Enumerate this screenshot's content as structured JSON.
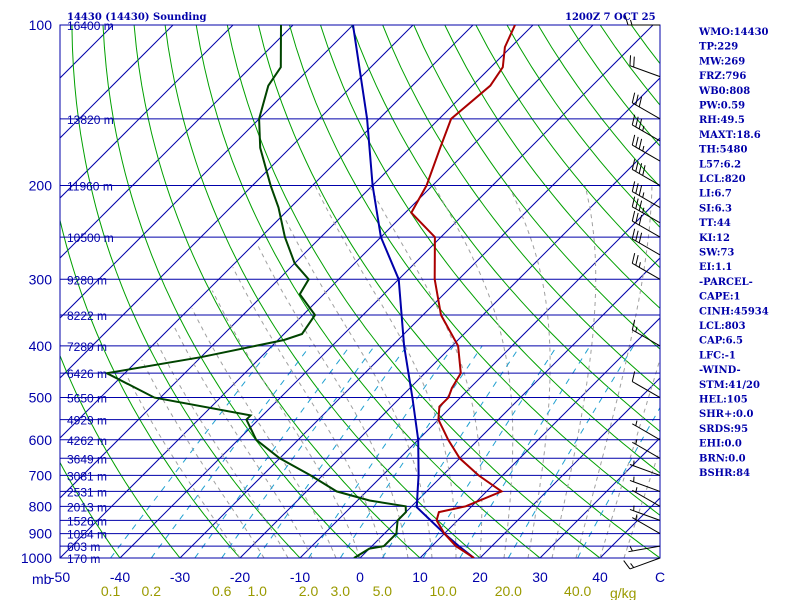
{
  "header": {
    "station": "14430 (14430) Sounding",
    "time": "1200Z  7 OCT 25"
  },
  "axis": {
    "pressure_label": "mb",
    "mixing_unit": "g/kg",
    "pressure_ticks": [
      100,
      200,
      300,
      400,
      500,
      600,
      700,
      800,
      900,
      1000
    ],
    "temp_ticks": [
      "-50",
      "-40",
      "-30",
      "-20",
      "-10",
      "0",
      "10",
      "20",
      "30",
      "40",
      "C"
    ],
    "temp_range": [
      -50,
      50
    ],
    "pressure_range": [
      1000,
      100
    ],
    "mixing_ticks": [
      "0.1",
      "0.2",
      "0.6",
      "1.0",
      "2.0",
      "3.0",
      "5.0",
      "10.0",
      "20.0",
      "40.0"
    ]
  },
  "heights": [
    {
      "p": 100,
      "label": "16400 m"
    },
    {
      "p": 150,
      "label": "13820 m"
    },
    {
      "p": 200,
      "label": "11960 m"
    },
    {
      "p": 250,
      "label": "10500 m"
    },
    {
      "p": 300,
      "label": "9280 m"
    },
    {
      "p": 350,
      "label": "8222 m"
    },
    {
      "p": 400,
      "label": "7280 m"
    },
    {
      "p": 450,
      "label": "6426 m"
    },
    {
      "p": 500,
      "label": "5650 m"
    },
    {
      "p": 550,
      "label": "4929 m"
    },
    {
      "p": 600,
      "label": "4262 m"
    },
    {
      "p": 650,
      "label": "3649 m"
    },
    {
      "p": 700,
      "label": "3081 m"
    },
    {
      "p": 750,
      "label": "2531 m"
    },
    {
      "p": 800,
      "label": "2013 m"
    },
    {
      "p": 850,
      "label": "1526 m"
    },
    {
      "p": 900,
      "label": "1054 m"
    },
    {
      "p": 950,
      "label": "603 m"
    },
    {
      "p": 1000,
      "label": "170 m"
    }
  ],
  "indices": [
    "WMO:14430",
    "TP:229",
    "MW:269",
    "FRZ:796",
    "WB0:808",
    "PW:0.59",
    "RH:49.5",
    "MAXT:18.6",
    "TH:5480",
    "L57:6.2",
    "LCL:820",
    "LI:6.7",
    "SI:6.3",
    "TT:44",
    "KI:12",
    "SW:73",
    "EI:1.1",
    "-PARCEL-",
    "CAPE:1",
    "CINH:45934",
    "LCL:803",
    "CAP:6.5",
    "LFC:-1",
    "-WIND-",
    "STM:41/20",
    "HEL:105",
    "SHR+:0.0",
    "SRDS:95",
    "EHI:0.0",
    "BRN:0.0",
    "BSHR:84"
  ],
  "colors": {
    "temperature": "#aa0000",
    "dewpoint": "#004400",
    "parcel": "#0000aa",
    "isobar": "#0000aa",
    "isotherm": "#0000aa",
    "dry_adiabat": "#00a000",
    "moist_adiabat": "#a0a0a0",
    "mixing_ratio": "#20a0d0"
  },
  "chart_data": {
    "type": "line",
    "title": "14430 (14430) Sounding",
    "xlabel": "C",
    "ylabel": "mb",
    "y_scale": "log",
    "skew": true,
    "series": [
      {
        "key": "temperature",
        "points": [
          [
            1000,
            19
          ],
          [
            950,
            14
          ],
          [
            900,
            10
          ],
          [
            850,
            6.5
          ],
          [
            820,
            5.5
          ],
          [
            800,
            9
          ],
          [
            750,
            12.5
          ],
          [
            700,
            6
          ],
          [
            650,
            0
          ],
          [
            600,
            -5
          ],
          [
            550,
            -10
          ],
          [
            520,
            -12
          ],
          [
            500,
            -12
          ],
          [
            480,
            -13
          ],
          [
            450,
            -14
          ],
          [
            400,
            -19
          ],
          [
            350,
            -27
          ],
          [
            300,
            -34
          ],
          [
            250,
            -41
          ],
          [
            225,
            -49
          ],
          [
            200,
            -51
          ],
          [
            170,
            -55
          ],
          [
            150,
            -58
          ],
          [
            130,
            -57
          ],
          [
            120,
            -58
          ],
          [
            110,
            -61
          ],
          [
            100,
            -63
          ]
        ]
      },
      {
        "key": "dewpoint",
        "points": [
          [
            1000,
            -1
          ],
          [
            960,
            0
          ],
          [
            950,
            2
          ],
          [
            900,
            2
          ],
          [
            850,
            0
          ],
          [
            820,
            0
          ],
          [
            800,
            -1
          ],
          [
            780,
            -8
          ],
          [
            750,
            -15
          ],
          [
            700,
            -22
          ],
          [
            650,
            -30
          ],
          [
            600,
            -37
          ],
          [
            550,
            -42
          ],
          [
            540,
            -42
          ],
          [
            500,
            -61
          ],
          [
            450,
            -73
          ],
          [
            420,
            -60
          ],
          [
            390,
            -49
          ],
          [
            380,
            -47
          ],
          [
            350,
            -48
          ],
          [
            320,
            -54
          ],
          [
            300,
            -55
          ],
          [
            280,
            -60
          ],
          [
            250,
            -66
          ],
          [
            220,
            -72
          ],
          [
            200,
            -77
          ],
          [
            170,
            -85
          ],
          [
            150,
            -90
          ],
          [
            130,
            -94
          ],
          [
            120,
            -95
          ],
          [
            100,
            -102
          ]
        ]
      },
      {
        "key": "parcel",
        "points": [
          [
            1000,
            19
          ],
          [
            950,
            14.5
          ],
          [
            900,
            10
          ],
          [
            850,
            5.5
          ],
          [
            803,
            1
          ],
          [
            750,
            -1.5
          ],
          [
            700,
            -4
          ],
          [
            600,
            -10
          ],
          [
            500,
            -18
          ],
          [
            400,
            -28
          ],
          [
            300,
            -40
          ],
          [
            250,
            -50
          ],
          [
            200,
            -60
          ],
          [
            150,
            -72
          ],
          [
            100,
            -90
          ]
        ]
      }
    ],
    "wind_barbs": [
      {
        "p": 1000,
        "dir": 250,
        "kt": 15
      },
      {
        "p": 950,
        "dir": 260,
        "kt": 5
      },
      {
        "p": 900,
        "dir": 300,
        "kt": 5
      },
      {
        "p": 850,
        "dir": 290,
        "kt": 5
      },
      {
        "p": 800,
        "dir": 300,
        "kt": 5
      },
      {
        "p": 750,
        "dir": 290,
        "kt": 5
      },
      {
        "p": 700,
        "dir": 290,
        "kt": 5
      },
      {
        "p": 650,
        "dir": 300,
        "kt": 5
      },
      {
        "p": 600,
        "dir": 300,
        "kt": 5
      },
      {
        "p": 500,
        "dir": 300,
        "kt": 10
      },
      {
        "p": 400,
        "dir": 300,
        "kt": 15
      },
      {
        "p": 300,
        "dir": 300,
        "kt": 25
      },
      {
        "p": 270,
        "dir": 300,
        "kt": 30
      },
      {
        "p": 250,
        "dir": 300,
        "kt": 30
      },
      {
        "p": 235,
        "dir": 300,
        "kt": 35
      },
      {
        "p": 220,
        "dir": 300,
        "kt": 35
      },
      {
        "p": 200,
        "dir": 300,
        "kt": 40
      },
      {
        "p": 180,
        "dir": 300,
        "kt": 35
      },
      {
        "p": 165,
        "dir": 300,
        "kt": 35
      },
      {
        "p": 150,
        "dir": 300,
        "kt": 30
      },
      {
        "p": 125,
        "dir": 290,
        "kt": 20
      },
      {
        "p": 100,
        "dir": 270,
        "kt": 15
      }
    ]
  }
}
